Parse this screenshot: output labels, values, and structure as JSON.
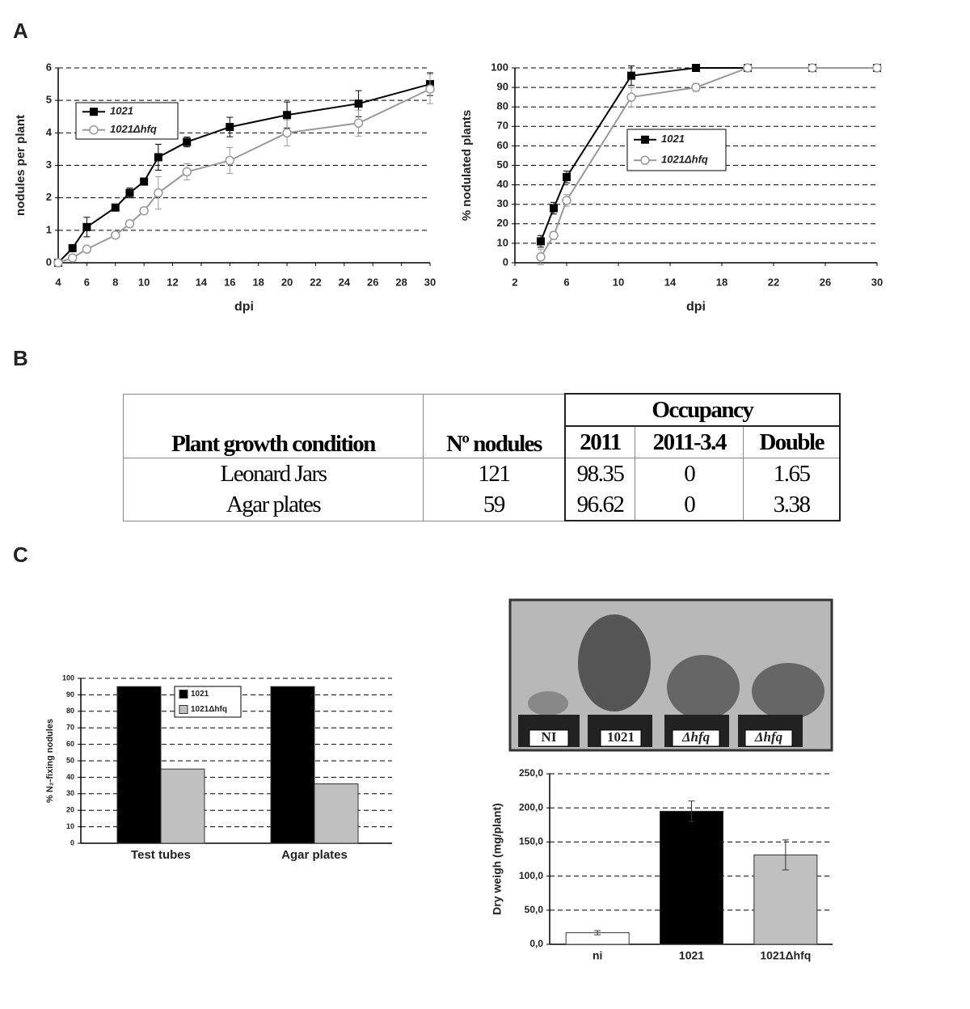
{
  "panels": [
    "A",
    "B",
    "C"
  ],
  "chart_data": [
    {
      "type": "line",
      "xlabel": "dpi",
      "ylabel": "nodules per plant",
      "xlim": [
        4,
        30
      ],
      "xticks": [
        4,
        6,
        8,
        10,
        12,
        14,
        16,
        18,
        20,
        22,
        24,
        26,
        28,
        30
      ],
      "ylim": [
        0,
        6
      ],
      "yticks": [
        0,
        1,
        2,
        3,
        4,
        5,
        6
      ],
      "grid": true,
      "x": [
        4,
        5,
        6,
        8,
        9,
        10,
        11,
        13,
        16,
        20,
        25,
        30
      ],
      "series": [
        {
          "name": "1021",
          "color": "#000000",
          "marker": "square",
          "values": [
            0,
            0.45,
            1.1,
            1.7,
            2.15,
            2.5,
            3.25,
            3.72,
            4.18,
            4.55,
            4.9,
            5.5
          ],
          "errors": [
            0,
            0.05,
            0.3,
            0.1,
            0.15,
            0.1,
            0.4,
            0.15,
            0.3,
            0.4,
            0.4,
            0.35
          ]
        },
        {
          "name": "1021Δhfq",
          "color": "#999999",
          "marker": "circle",
          "values": [
            0,
            0.15,
            0.42,
            0.85,
            1.2,
            1.6,
            2.15,
            2.8,
            3.15,
            4.0,
            4.3,
            5.35
          ],
          "errors": [
            0,
            0.05,
            0.05,
            0.05,
            0.1,
            0.1,
            0.5,
            0.25,
            0.4,
            0.4,
            0.4,
            0.45
          ]
        }
      ]
    },
    {
      "type": "line",
      "xlabel": "dpi",
      "ylabel": "% nodulated plants",
      "xlim": [
        2,
        30
      ],
      "xticks": [
        2,
        6,
        10,
        14,
        18,
        22,
        26,
        30
      ],
      "ylim": [
        0,
        100
      ],
      "yticks": [
        0,
        10,
        20,
        30,
        40,
        50,
        60,
        70,
        80,
        90,
        100
      ],
      "grid": true,
      "x": [
        4,
        5,
        6,
        11,
        16,
        20,
        25,
        30
      ],
      "series": [
        {
          "name": "1021",
          "color": "#000000",
          "marker": "square",
          "values": [
            11,
            28,
            44,
            96,
            100,
            100,
            100,
            100
          ],
          "errors": [
            3,
            3,
            3,
            5,
            1,
            0,
            0,
            0
          ]
        },
        {
          "name": "1021Δhfq",
          "color": "#999999",
          "marker": "circle",
          "values": [
            3,
            14,
            32,
            85,
            90,
            100,
            100,
            100
          ],
          "errors": [
            4,
            2,
            3,
            5,
            2,
            0,
            0,
            0
          ]
        }
      ]
    },
    {
      "type": "bar",
      "ylabel": "% N₂-fixing nodules",
      "ylim": [
        0,
        100
      ],
      "yticks": [
        0,
        10,
        20,
        30,
        40,
        50,
        60,
        70,
        80,
        90,
        100
      ],
      "grid": true,
      "categories": [
        "Test tubes",
        "Agar plates"
      ],
      "series": [
        {
          "name": "1021",
          "color": "#000000",
          "values": [
            95,
            95
          ]
        },
        {
          "name": "1021Δhfq",
          "color": "#c0c0c0",
          "values": [
            45,
            36
          ]
        }
      ]
    },
    {
      "type": "bar",
      "ylabel": "Dry weigh (mg/plant)",
      "ylim": [
        0,
        250
      ],
      "yticks": [
        {
          "value": 0,
          "label": "0,0"
        },
        {
          "value": 50,
          "label": "50,0"
        },
        {
          "value": 100,
          "label": "100,0"
        },
        {
          "value": 150,
          "label": "150,0"
        },
        {
          "value": 200,
          "label": "200,0"
        },
        {
          "value": 250,
          "label": "250,0"
        }
      ],
      "grid": true,
      "categories": [
        "ni",
        "1021",
        "1021Δhfq"
      ],
      "values": [
        17,
        195,
        131
      ],
      "errors": [
        3,
        15,
        22
      ],
      "colors": [
        "#ffffff",
        "#000000",
        "#c0c0c0"
      ]
    }
  ],
  "table": {
    "header": [
      "Plant growth condition",
      "Nº nodules"
    ],
    "group": "Occupancy",
    "subheader": [
      "2011",
      "2011-3.4",
      "Double"
    ],
    "rows": [
      [
        "Leonard Jars",
        "121",
        "98.35",
        "0",
        "1.65"
      ],
      [
        "Agar plates",
        "59",
        "96.62",
        "0",
        "3.38"
      ]
    ]
  },
  "photo": {
    "labels": [
      "NI",
      "1021",
      "Δhfq",
      "Δhfq"
    ]
  }
}
